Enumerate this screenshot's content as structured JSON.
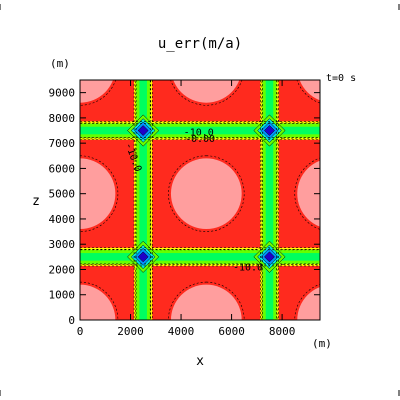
{
  "chart_data": {
    "type": "heatmap",
    "title": "u_err(m/a)",
    "time_label": "t=0  s",
    "xlabel": "x",
    "ylabel": "z",
    "x_unit": "(m)",
    "y_unit": "(m)",
    "xlim": [
      0,
      9500
    ],
    "ylim": [
      0,
      9500
    ],
    "x_ticks": [
      0,
      2000,
      4000,
      6000,
      8000
    ],
    "y_ticks": [
      0,
      1000,
      2000,
      3000,
      4000,
      5000,
      6000,
      7000,
      8000,
      9000
    ],
    "grid": false,
    "description_of_field": "periodic cell pattern; red cells with light-pink centres, green/yellow bands along cell boundaries, blue minima at band crossings",
    "band_centres_x": [
      2500,
      7500
    ],
    "band_centres_z": [
      2500,
      7500
    ],
    "minima": [
      {
        "x": 2500,
        "z": 2500
      },
      {
        "x": 7500,
        "z": 2500
      },
      {
        "x": 2500,
        "z": 7500
      },
      {
        "x": 7500,
        "z": 7500
      }
    ],
    "contour_labels": [
      {
        "text": "-10.0",
        "x": 4700,
        "z": 7300
      },
      {
        "text": "-0.00",
        "x": 4750,
        "z": 7050
      },
      {
        "text": "-10.0",
        "x": 6650,
        "z": 1950
      },
      {
        "text": "-10.0",
        "x": 2000,
        "z": 6400
      }
    ],
    "colors": {
      "cell": "#ff2a1e",
      "cell_centre": "#ff9e9e",
      "band_outer": "#ffff00",
      "band_mid": "#66ff00",
      "band_inner": "#00ff60",
      "node_outer": "#00e8e0",
      "node_mid": "#0090ff",
      "node_inner": "#2000c8"
    }
  }
}
